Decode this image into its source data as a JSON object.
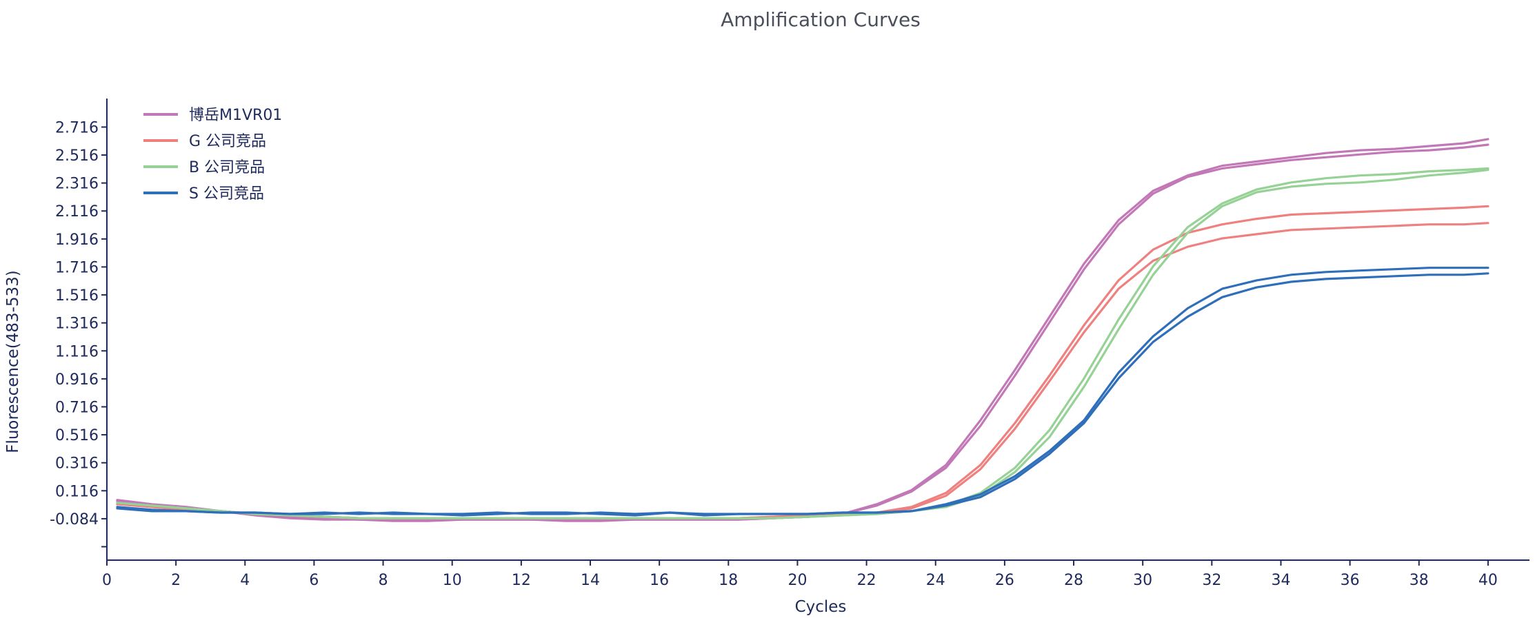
{
  "chart_data": {
    "type": "line",
    "title": "Amplification Curves",
    "xlabel": "Cycles",
    "ylabel": "Fluorescence(483-533)",
    "xlim": [
      0,
      41.2
    ],
    "ylim": [
      -0.38,
      2.92
    ],
    "x_ticks": [
      0,
      2,
      4,
      6,
      8,
      10,
      12,
      14,
      16,
      18,
      20,
      22,
      24,
      26,
      28,
      30,
      32,
      34,
      36,
      38,
      40
    ],
    "y_ticks": [
      -0.084,
      0.116,
      0.316,
      0.516,
      0.716,
      0.916,
      1.116,
      1.316,
      1.516,
      1.716,
      1.916,
      2.116,
      2.316,
      2.516,
      2.716
    ],
    "y_tick_labels": [
      "-0.084",
      "0.116",
      "0.316",
      "0.516",
      "0.716",
      "0.916",
      "1.116",
      "1.316",
      "1.516",
      "1.716",
      "1.916",
      "2.116",
      "2.316",
      "2.516",
      "2.716"
    ],
    "grid": false,
    "legend_position": "top-left",
    "x": [
      0.3,
      1.3,
      2.3,
      3.3,
      4.3,
      5.3,
      6.3,
      7.3,
      8.3,
      9.3,
      10.3,
      11.3,
      12.3,
      13.3,
      14.3,
      15.3,
      16.3,
      17.3,
      18.3,
      19.3,
      20.3,
      21.3,
      22.3,
      23.3,
      24.3,
      25.3,
      26.3,
      27.3,
      28.3,
      29.3,
      30.3,
      31.3,
      32.3,
      33.3,
      34.3,
      35.3,
      36.3,
      37.3,
      38.3,
      39.3,
      40.0
    ],
    "series": [
      {
        "name": "博岳M1VR01",
        "color": "#c278b6",
        "values": [
          0.05,
          0.02,
          0.0,
          -0.03,
          -0.06,
          -0.08,
          -0.09,
          -0.09,
          -0.1,
          -0.1,
          -0.09,
          -0.09,
          -0.09,
          -0.1,
          -0.1,
          -0.09,
          -0.09,
          -0.09,
          -0.09,
          -0.08,
          -0.07,
          -0.05,
          0.02,
          0.12,
          0.3,
          0.62,
          0.98,
          1.36,
          1.74,
          2.05,
          2.26,
          2.37,
          2.44,
          2.47,
          2.5,
          2.53,
          2.55,
          2.56,
          2.58,
          2.6,
          2.63
        ]
      },
      {
        "name": "博岳M1VR01",
        "color": "#c278b6",
        "values": [
          0.04,
          0.01,
          -0.01,
          -0.03,
          -0.05,
          -0.07,
          -0.08,
          -0.09,
          -0.09,
          -0.09,
          -0.09,
          -0.09,
          -0.09,
          -0.09,
          -0.09,
          -0.09,
          -0.09,
          -0.09,
          -0.09,
          -0.08,
          -0.07,
          -0.05,
          0.01,
          0.11,
          0.28,
          0.58,
          0.94,
          1.32,
          1.7,
          2.02,
          2.24,
          2.36,
          2.42,
          2.45,
          2.48,
          2.5,
          2.52,
          2.54,
          2.55,
          2.57,
          2.59
        ]
      },
      {
        "name": "G 公司竞品",
        "color": "#ef8080",
        "values": [
          0.02,
          0.0,
          -0.02,
          -0.03,
          -0.05,
          -0.06,
          -0.07,
          -0.08,
          -0.08,
          -0.08,
          -0.08,
          -0.08,
          -0.08,
          -0.08,
          -0.08,
          -0.08,
          -0.08,
          -0.08,
          -0.08,
          -0.07,
          -0.06,
          -0.05,
          -0.04,
          0.0,
          0.1,
          0.3,
          0.6,
          0.94,
          1.3,
          1.62,
          1.84,
          1.96,
          2.02,
          2.06,
          2.09,
          2.1,
          2.11,
          2.12,
          2.13,
          2.14,
          2.15
        ]
      },
      {
        "name": "G 公司竞品",
        "color": "#ef8080",
        "values": [
          0.02,
          0.0,
          -0.02,
          -0.03,
          -0.05,
          -0.06,
          -0.07,
          -0.08,
          -0.08,
          -0.08,
          -0.08,
          -0.08,
          -0.08,
          -0.08,
          -0.08,
          -0.08,
          -0.08,
          -0.08,
          -0.08,
          -0.07,
          -0.06,
          -0.05,
          -0.04,
          -0.01,
          0.08,
          0.27,
          0.56,
          0.9,
          1.25,
          1.56,
          1.76,
          1.86,
          1.92,
          1.95,
          1.98,
          1.99,
          2.0,
          2.01,
          2.02,
          2.02,
          2.03
        ]
      },
      {
        "name": "B 公司竞品",
        "color": "#96d196",
        "values": [
          0.03,
          0.01,
          -0.01,
          -0.03,
          -0.05,
          -0.06,
          -0.07,
          -0.08,
          -0.08,
          -0.08,
          -0.08,
          -0.08,
          -0.08,
          -0.08,
          -0.08,
          -0.08,
          -0.08,
          -0.08,
          -0.08,
          -0.08,
          -0.07,
          -0.06,
          -0.05,
          -0.03,
          0.01,
          0.1,
          0.28,
          0.55,
          0.92,
          1.34,
          1.72,
          2.0,
          2.17,
          2.27,
          2.32,
          2.35,
          2.37,
          2.38,
          2.4,
          2.41,
          2.42
        ]
      },
      {
        "name": "B 公司竞品",
        "color": "#96d196",
        "values": [
          0.03,
          0.01,
          -0.01,
          -0.03,
          -0.05,
          -0.06,
          -0.07,
          -0.08,
          -0.08,
          -0.08,
          -0.08,
          -0.08,
          -0.08,
          -0.08,
          -0.08,
          -0.08,
          -0.08,
          -0.08,
          -0.08,
          -0.08,
          -0.07,
          -0.06,
          -0.05,
          -0.03,
          0.0,
          0.08,
          0.25,
          0.5,
          0.86,
          1.27,
          1.66,
          1.96,
          2.15,
          2.25,
          2.29,
          2.31,
          2.32,
          2.34,
          2.37,
          2.39,
          2.41
        ]
      },
      {
        "name": "S 公司竞品",
        "color": "#2f6fba",
        "values": [
          0.0,
          -0.02,
          -0.03,
          -0.04,
          -0.04,
          -0.05,
          -0.05,
          -0.04,
          -0.05,
          -0.05,
          -0.06,
          -0.05,
          -0.04,
          -0.04,
          -0.05,
          -0.06,
          -0.04,
          -0.06,
          -0.05,
          -0.05,
          -0.05,
          -0.04,
          -0.04,
          -0.03,
          0.02,
          0.09,
          0.22,
          0.4,
          0.62,
          0.96,
          1.22,
          1.42,
          1.56,
          1.62,
          1.66,
          1.68,
          1.69,
          1.7,
          1.71,
          1.71,
          1.71
        ]
      },
      {
        "name": "S 公司竞品",
        "color": "#2f6fba",
        "values": [
          -0.01,
          -0.03,
          -0.03,
          -0.04,
          -0.04,
          -0.05,
          -0.04,
          -0.05,
          -0.04,
          -0.05,
          -0.05,
          -0.04,
          -0.05,
          -0.05,
          -0.04,
          -0.05,
          -0.04,
          -0.05,
          -0.05,
          -0.05,
          -0.05,
          -0.04,
          -0.04,
          -0.03,
          0.01,
          0.07,
          0.2,
          0.38,
          0.6,
          0.92,
          1.18,
          1.36,
          1.5,
          1.57,
          1.61,
          1.63,
          1.64,
          1.65,
          1.66,
          1.66,
          1.67
        ]
      }
    ],
    "legend": [
      {
        "label": "博岳M1VR01",
        "color": "#c278b6"
      },
      {
        "label": "G 公司竞品",
        "color": "#ef8080"
      },
      {
        "label": "B 公司竞品",
        "color": "#96d196"
      },
      {
        "label": "S 公司竞品",
        "color": "#2f6fba"
      }
    ]
  }
}
